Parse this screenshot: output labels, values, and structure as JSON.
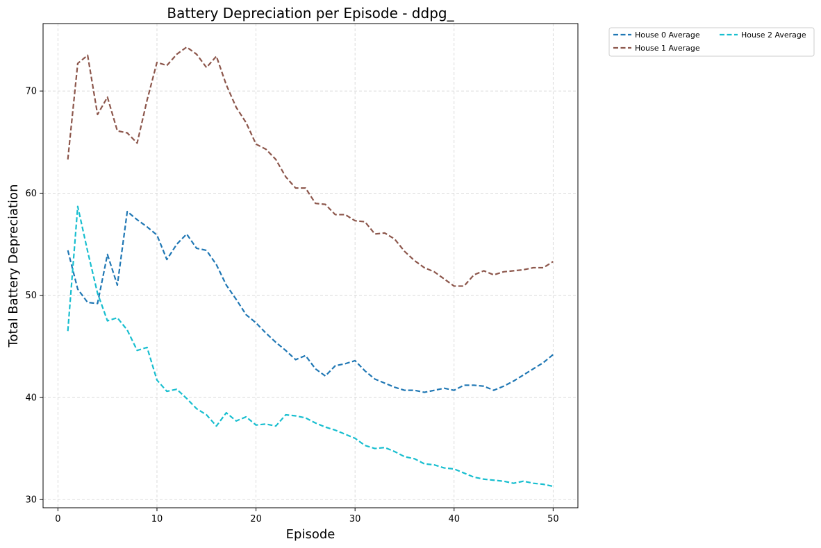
{
  "chart_data": {
    "type": "line",
    "title": "Battery Depreciation per Episode - ddpg_",
    "xlabel": "Episode",
    "ylabel": "Total Battery Depreciation",
    "xlim": [
      -1.5,
      52.5
    ],
    "ylim": [
      29.2,
      76.6
    ],
    "xticks": [
      0,
      10,
      20,
      30,
      40,
      50
    ],
    "yticks": [
      30,
      40,
      50,
      60,
      70
    ],
    "grid": true,
    "legend_position": "outside-top-right",
    "x": [
      1,
      2,
      3,
      4,
      5,
      6,
      7,
      8,
      9,
      10,
      11,
      12,
      13,
      14,
      15,
      16,
      17,
      18,
      19,
      20,
      21,
      22,
      23,
      24,
      25,
      26,
      27,
      28,
      29,
      30,
      31,
      32,
      33,
      34,
      35,
      36,
      37,
      38,
      39,
      40,
      41,
      42,
      43,
      44,
      45,
      46,
      47,
      48,
      49,
      50
    ],
    "series": [
      {
        "name": "House 0 Average",
        "color": "#1f77b4",
        "values": [
          54.4,
          50.6,
          49.3,
          49.2,
          54.0,
          51.0,
          58.2,
          57.4,
          56.7,
          55.9,
          53.5,
          55.0,
          56.0,
          54.6,
          54.4,
          53.0,
          51.0,
          49.6,
          48.1,
          47.3,
          46.3,
          45.4,
          44.6,
          43.7,
          44.1,
          42.8,
          42.1,
          43.1,
          43.3,
          43.6,
          42.6,
          41.8,
          41.4,
          41.0,
          40.7,
          40.7,
          40.5,
          40.7,
          40.9,
          40.7,
          41.2,
          41.2,
          41.1,
          40.7,
          41.1,
          41.6,
          42.2,
          42.8,
          43.4,
          44.2
        ]
      },
      {
        "name": "House 1 Average",
        "color": "#8c564b",
        "values": [
          63.3,
          72.7,
          73.5,
          67.7,
          69.4,
          66.1,
          65.9,
          64.9,
          69.1,
          72.8,
          72.5,
          73.6,
          74.3,
          73.6,
          72.3,
          73.4,
          70.6,
          68.4,
          66.9,
          64.8,
          64.3,
          63.3,
          61.6,
          60.5,
          60.5,
          59.0,
          58.9,
          57.9,
          57.9,
          57.3,
          57.2,
          56.0,
          56.1,
          55.5,
          54.3,
          53.4,
          52.7,
          52.3,
          51.6,
          50.9,
          50.9,
          52.0,
          52.4,
          52.0,
          52.3,
          52.4,
          52.5,
          52.7,
          52.7,
          53.3
        ]
      },
      {
        "name": "House 2 Average",
        "color": "#17becf",
        "values": [
          46.5,
          58.7,
          54.3,
          50.2,
          47.5,
          47.8,
          46.6,
          44.6,
          44.9,
          41.7,
          40.6,
          40.8,
          39.9,
          38.9,
          38.3,
          37.2,
          38.5,
          37.7,
          38.1,
          37.3,
          37.4,
          37.2,
          38.3,
          38.2,
          38.0,
          37.5,
          37.1,
          36.8,
          36.4,
          36.0,
          35.3,
          35.0,
          35.1,
          34.7,
          34.2,
          34.0,
          33.5,
          33.4,
          33.1,
          33.0,
          32.6,
          32.2,
          32.0,
          31.9,
          31.8,
          31.6,
          31.8,
          31.6,
          31.5,
          31.3
        ]
      }
    ]
  },
  "colors": {
    "axes_frame": "#000000",
    "grid": "#b0b0b0",
    "legend_border": "#cccccc"
  }
}
